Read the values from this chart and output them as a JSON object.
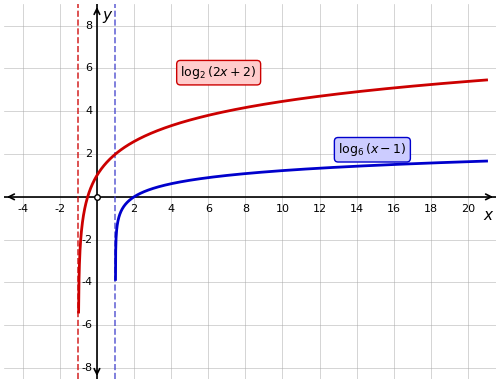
{
  "xlim": [
    -5,
    21.5
  ],
  "ylim": [
    -8.5,
    9
  ],
  "xticks": [
    -4,
    -2,
    0,
    2,
    4,
    6,
    8,
    10,
    12,
    14,
    16,
    18,
    20
  ],
  "yticks": [
    -8,
    -6,
    -4,
    -2,
    0,
    2,
    4,
    6,
    8
  ],
  "xlabel": "x",
  "ylabel": "y",
  "red_asymptote": -1,
  "blue_asymptote": 1,
  "red_label": "$\\log_2(2x + 2)$",
  "blue_label": "$\\log_6(x - 1)$",
  "red_color": "#cc0000",
  "blue_color": "#0000cc",
  "red_dashed_color": "#cc0000",
  "blue_dashed_color": "#4444cc",
  "background_color": "#ffffff",
  "grid_color": "#aaaaaa"
}
